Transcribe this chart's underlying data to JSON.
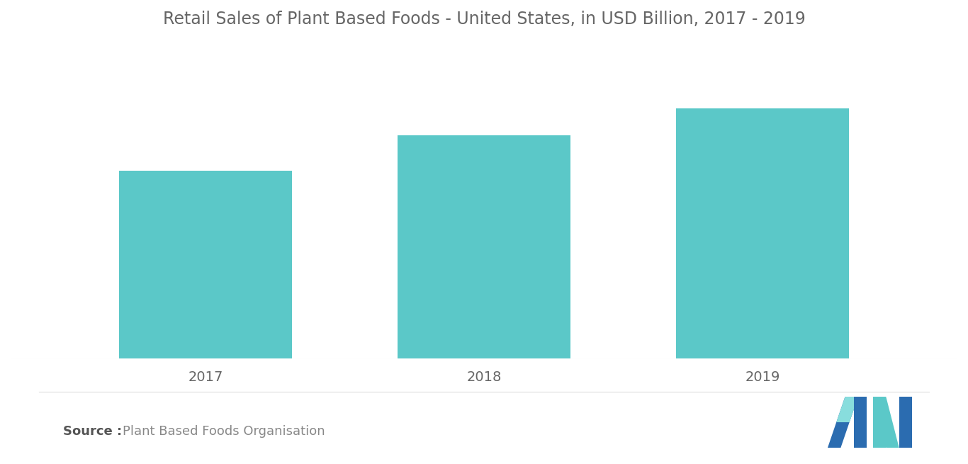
{
  "title": "Retail Sales of Plant Based Foods - United States, in USD Billion, 2017 - 2019",
  "categories": [
    "2017",
    "2018",
    "2019"
  ],
  "values": [
    4.2,
    5.0,
    5.6
  ],
  "bar_color": "#5BC8C8",
  "background_color": "#ffffff",
  "title_fontsize": 17,
  "tick_fontsize": 14,
  "ylim": [
    0,
    7
  ],
  "source_bold": "Source :",
  "source_text": "Plant Based Foods Organisation",
  "source_fontsize": 13,
  "bar_width": 0.62,
  "title_color": "#666666",
  "tick_color": "#666666",
  "source_color": "#888888",
  "logo_blue": "#2B6CB0",
  "logo_teal": "#5BC8C8"
}
